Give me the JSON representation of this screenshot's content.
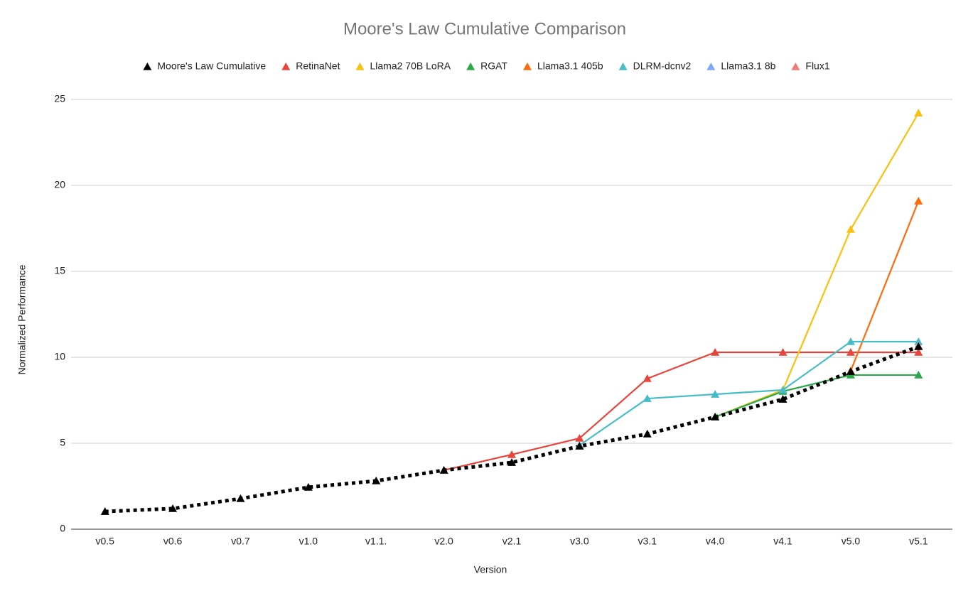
{
  "chart_data": {
    "type": "line",
    "title": "Moore's Law Cumulative Comparison",
    "x_label": "Version",
    "y_label": "Normalized Performance",
    "categories": [
      "v0.5",
      "v0.6",
      "v0.7",
      "v1.0",
      "v1.1.",
      "v2.0",
      "v2.1",
      "v3.0",
      "v3.1",
      "v4.0",
      "v4.1",
      "v5.0",
      "v5.1"
    ],
    "ylim": [
      0,
      25
    ],
    "yticks": [
      0,
      5,
      10,
      15,
      20,
      25
    ],
    "grid": true,
    "legend": "top",
    "series": [
      {
        "name": "Moore's Law Cumulative",
        "color": "#000000",
        "line_style": "dotted",
        "values": [
          1.03,
          1.2,
          1.78,
          2.44,
          2.81,
          3.43,
          3.88,
          4.83,
          5.54,
          6.53,
          7.56,
          9.17,
          10.62
        ]
      },
      {
        "name": "RetinaNet",
        "color": "#e8443a",
        "values": [
          null,
          null,
          null,
          null,
          null,
          3.43,
          4.34,
          5.29,
          8.76,
          10.29,
          10.29,
          10.29,
          10.29
        ]
      },
      {
        "name": "Llama2 70B LoRA",
        "color": "#f9c00f",
        "values": [
          null,
          null,
          null,
          null,
          null,
          null,
          null,
          null,
          null,
          6.53,
          8.1,
          17.44,
          24.21
        ]
      },
      {
        "name": "RGAT",
        "color": "#2aa84a",
        "values": [
          null,
          null,
          null,
          null,
          null,
          null,
          null,
          null,
          null,
          6.53,
          8.02,
          8.97,
          8.97
        ]
      },
      {
        "name": "Llama3.1 405b",
        "color": "#fb6c0c",
        "values": [
          null,
          null,
          null,
          null,
          null,
          null,
          null,
          null,
          null,
          null,
          null,
          9.21,
          19.09
        ]
      },
      {
        "name": "DLRM-dcnv2",
        "color": "#46bdc6",
        "values": [
          null,
          null,
          null,
          null,
          null,
          null,
          null,
          4.88,
          7.6,
          7.85,
          8.1,
          10.91,
          10.91
        ]
      },
      {
        "name": "Llama3.1 8b",
        "color": "#7baaf7",
        "values": [
          null,
          null,
          null,
          null,
          null,
          null,
          null,
          null,
          null,
          null,
          null,
          null,
          10.66
        ]
      },
      {
        "name": "Flux1",
        "color": "#f07b72",
        "values": [
          null,
          null,
          null,
          null,
          null,
          null,
          null,
          null,
          null,
          null,
          null,
          null,
          10.66
        ]
      }
    ]
  }
}
